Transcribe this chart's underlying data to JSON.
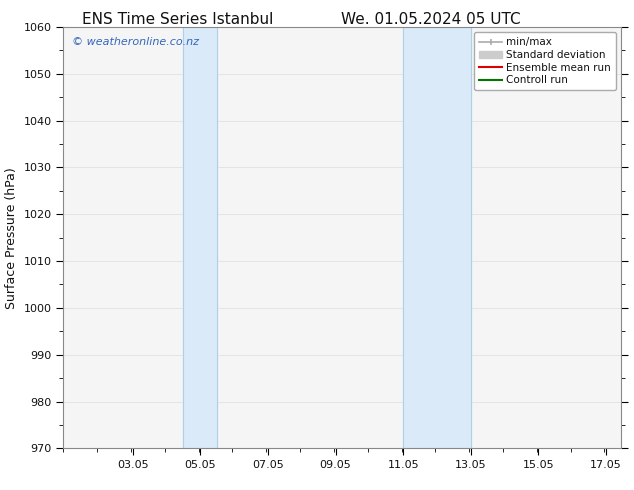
{
  "title_left": "ENS Time Series Istanbul",
  "title_right": "We. 01.05.2024 05 UTC",
  "ylabel": "Surface Pressure (hPa)",
  "ylim": [
    970,
    1060
  ],
  "yticks": [
    970,
    980,
    990,
    1000,
    1010,
    1020,
    1030,
    1040,
    1050,
    1060
  ],
  "xlim": [
    1.0,
    17.5
  ],
  "xtick_positions": [
    3.05,
    5.05,
    7.05,
    9.05,
    11.05,
    13.05,
    15.05,
    17.05
  ],
  "xtick_labels": [
    "03.05",
    "05.05",
    "07.05",
    "09.05",
    "11.05",
    "13.05",
    "15.05",
    "17.05"
  ],
  "shaded_bands": [
    {
      "xmin": 4.55,
      "xmax": 5.55
    },
    {
      "xmin": 11.05,
      "xmax": 13.05
    }
  ],
  "shaded_color": "#daeaf8",
  "band_edge_color": "#b0cfe8",
  "watermark_text": "© weatheronline.co.nz",
  "watermark_color": "#3366bb",
  "legend_entries": [
    {
      "label": "min/max",
      "color": "#aaaaaa",
      "lw": 1.2
    },
    {
      "label": "Standard deviation",
      "color": "#cccccc",
      "lw": 6
    },
    {
      "label": "Ensemble mean run",
      "color": "#dd0000",
      "lw": 1.5
    },
    {
      "label": "Controll run",
      "color": "#007700",
      "lw": 1.5
    }
  ],
  "bg_color": "#ffffff",
  "plot_bg_color": "#f5f5f5",
  "grid_color": "#dddddd",
  "font_color": "#111111",
  "title_fontsize": 11,
  "label_fontsize": 9,
  "tick_fontsize": 8,
  "watermark_fontsize": 8,
  "legend_fontsize": 7.5
}
